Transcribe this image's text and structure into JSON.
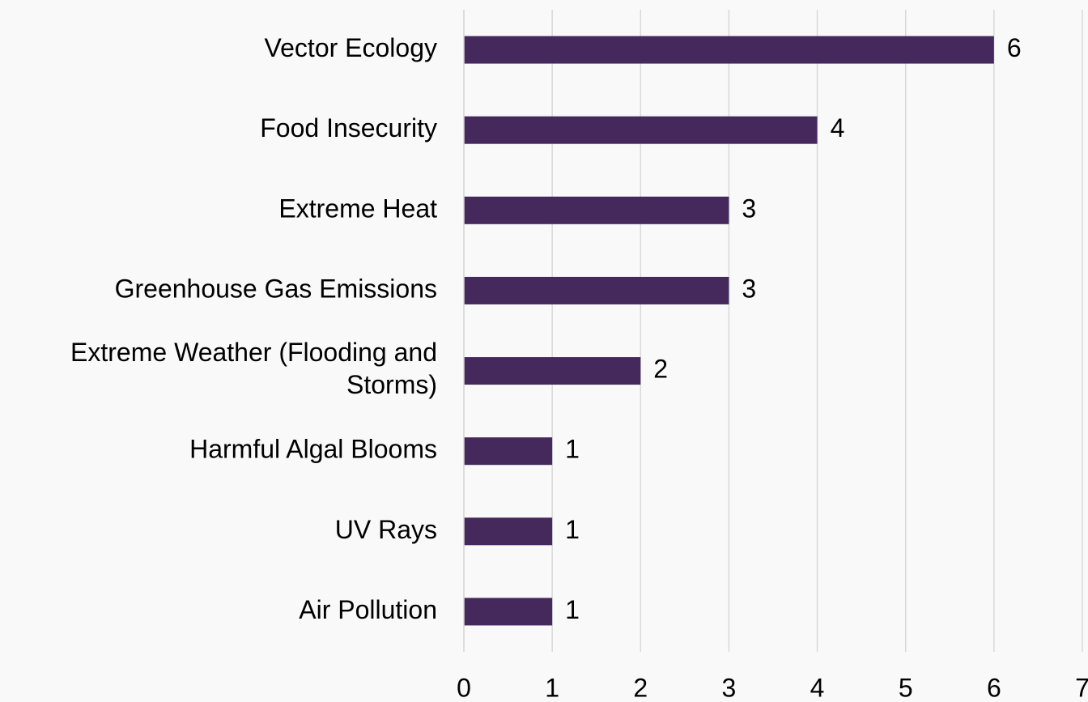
{
  "chart_data": {
    "type": "hbar",
    "categories": [
      "Vector Ecology",
      "Food Insecurity",
      "Extreme Heat",
      "Greenhouse Gas Emissions",
      "Extreme Weather (Flooding and Storms)",
      "Harmful Algal Blooms",
      "UV Rays",
      "Air Pollution"
    ],
    "values": [
      6,
      4,
      3,
      3,
      2,
      1,
      1,
      1
    ],
    "color": "#45295c",
    "xlim": [
      0,
      7
    ],
    "xticks": [
      0,
      1,
      2,
      3,
      4,
      5,
      6,
      7
    ],
    "grid": true
  }
}
